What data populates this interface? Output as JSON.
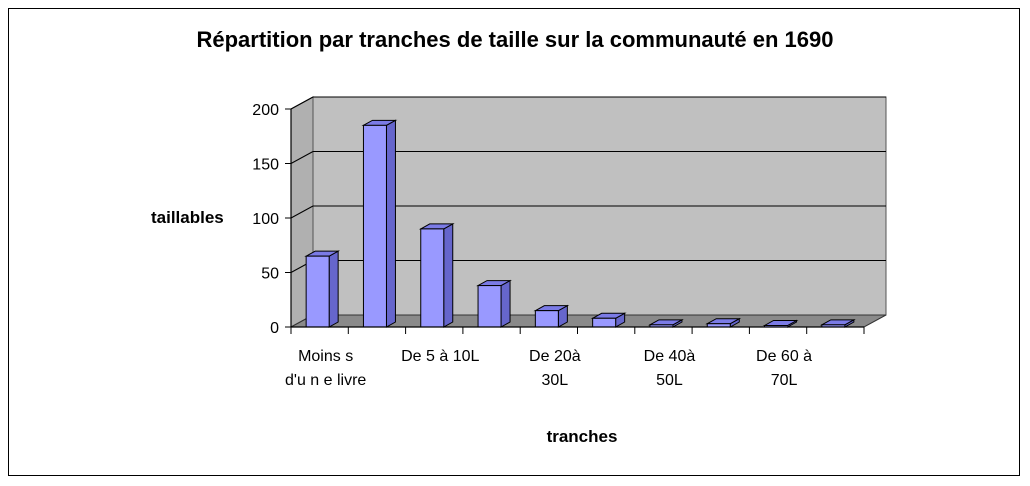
{
  "chart_data": {
    "type": "bar",
    "title": "Répartition par tranches de taille sur la communauté en 1690",
    "xlabel": "tranches",
    "ylabel": "taillables",
    "ylim": [
      0,
      200
    ],
    "yticks": [
      "0",
      "50",
      "100",
      "150",
      "200"
    ],
    "grid": true,
    "legend": "none",
    "colors": {
      "bar_face": "#9999ff",
      "bar_top": "#7b7be6",
      "bar_side": "#6666cc",
      "wall": "#c0c0c0",
      "floor": "#8a8a8a"
    },
    "categories": [
      {
        "lines": [
          "Moins s",
          "d'u n e livre"
        ]
      },
      {
        "lines": []
      },
      {
        "lines": [
          "De 5 à 10L"
        ]
      },
      {
        "lines": []
      },
      {
        "lines": [
          "De 20à",
          "30L"
        ]
      },
      {
        "lines": []
      },
      {
        "lines": [
          "De 40à",
          "50L"
        ]
      },
      {
        "lines": []
      },
      {
        "lines": [
          "De 60 à",
          "70L"
        ]
      },
      {
        "lines": []
      }
    ],
    "values": [
      65,
      185,
      90,
      38,
      15,
      8,
      2,
      3,
      0,
      2
    ]
  }
}
